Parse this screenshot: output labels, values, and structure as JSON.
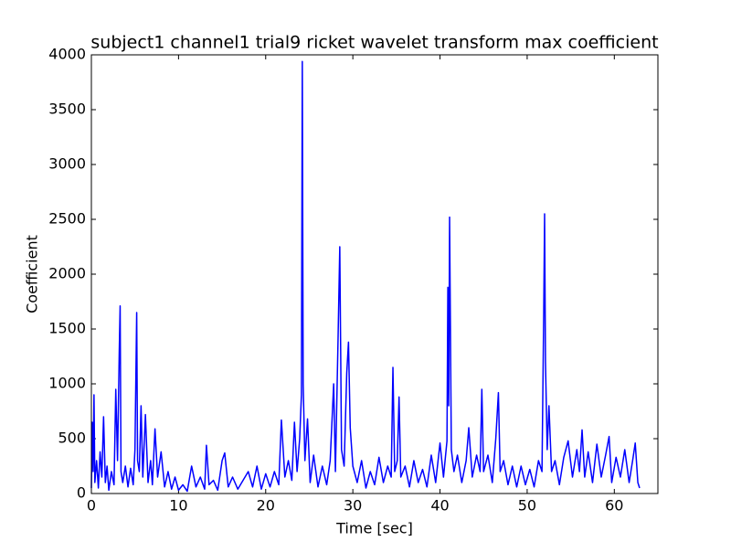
{
  "chart_data": {
    "type": "line",
    "title": "subject1 channel1 trial9 ricket wavelet transform max coefficient",
    "xlabel": "Time [sec]",
    "ylabel": "Coefficient",
    "color": "#0000ff",
    "xlim": [
      0,
      65
    ],
    "ylim": [
      0,
      4000
    ],
    "xticks": [
      0,
      10,
      20,
      30,
      40,
      50,
      60
    ],
    "yticks": [
      0,
      500,
      1000,
      1500,
      2000,
      2500,
      3000,
      3500,
      4000
    ],
    "grid": false,
    "x": [
      0,
      0.1,
      0.2,
      0.3,
      0.4,
      0.6,
      0.8,
      1.0,
      1.2,
      1.4,
      1.6,
      1.8,
      2.0,
      2.3,
      2.6,
      2.8,
      3.0,
      3.2,
      3.3,
      3.4,
      3.6,
      3.9,
      4.2,
      4.5,
      4.8,
      5.0,
      5.2,
      5.3,
      5.5,
      5.7,
      5.9,
      6.2,
      6.5,
      6.8,
      7.0,
      7.3,
      7.6,
      8.0,
      8.4,
      8.8,
      9.2,
      9.6,
      10.0,
      10.5,
      11.0,
      11.5,
      12.0,
      12.5,
      13.0,
      13.2,
      13.5,
      14.0,
      14.5,
      15.0,
      15.3,
      15.7,
      16.2,
      16.8,
      17.4,
      18.0,
      18.5,
      19.0,
      19.5,
      20.0,
      20.5,
      21.0,
      21.5,
      21.8,
      22.2,
      22.6,
      23.0,
      23.3,
      23.6,
      23.9,
      24.1,
      24.2,
      24.3,
      24.5,
      24.8,
      25.1,
      25.5,
      26.0,
      26.5,
      27.0,
      27.4,
      27.8,
      28.0,
      28.3,
      28.5,
      28.7,
      29.0,
      29.3,
      29.5,
      29.7,
      30.0,
      30.5,
      31.0,
      31.5,
      32.0,
      32.5,
      33.0,
      33.5,
      34.0,
      34.4,
      34.6,
      34.8,
      35.1,
      35.3,
      35.5,
      36.0,
      36.5,
      37.0,
      37.5,
      38.0,
      38.5,
      39.0,
      39.5,
      40.0,
      40.4,
      40.8,
      40.9,
      41.0,
      41.1,
      41.3,
      41.6,
      42.0,
      42.5,
      43.0,
      43.3,
      43.7,
      44.2,
      44.6,
      44.8,
      45.0,
      45.5,
      46.0,
      46.4,
      46.7,
      46.9,
      47.3,
      47.8,
      48.3,
      48.8,
      49.3,
      49.8,
      50.3,
      50.8,
      51.3,
      51.7,
      51.9,
      52.0,
      52.1,
      52.3,
      52.5,
      52.8,
      53.2,
      53.7,
      54.2,
      54.7,
      55.2,
      55.7,
      56.0,
      56.3,
      56.6,
      57.0,
      57.5,
      58.0,
      58.5,
      59.0,
      59.4,
      59.7,
      60.2,
      60.7,
      61.2,
      61.7,
      62.1,
      62.4,
      62.7,
      62.9
    ],
    "values": [
      50,
      650,
      200,
      900,
      100,
      300,
      50,
      380,
      150,
      700,
      100,
      250,
      30,
      200,
      80,
      950,
      300,
      1300,
      1710,
      200,
      100,
      250,
      60,
      230,
      80,
      400,
      1650,
      300,
      200,
      800,
      150,
      720,
      100,
      300,
      80,
      590,
      150,
      380,
      60,
      200,
      40,
      150,
      30,
      80,
      20,
      250,
      60,
      150,
      40,
      440,
      80,
      120,
      30,
      300,
      370,
      60,
      150,
      40,
      120,
      200,
      60,
      250,
      40,
      180,
      60,
      200,
      80,
      670,
      150,
      300,
      120,
      650,
      200,
      500,
      900,
      3940,
      1000,
      300,
      680,
      100,
      350,
      60,
      250,
      80,
      300,
      1000,
      200,
      1400,
      2250,
      400,
      250,
      1100,
      1380,
      600,
      250,
      100,
      300,
      50,
      200,
      80,
      330,
      100,
      250,
      150,
      1150,
      200,
      300,
      880,
      150,
      250,
      60,
      300,
      100,
      220,
      60,
      350,
      100,
      460,
      150,
      480,
      1880,
      800,
      2520,
      400,
      200,
      350,
      100,
      300,
      600,
      150,
      350,
      200,
      950,
      200,
      350,
      100,
      500,
      920,
      200,
      300,
      80,
      250,
      60,
      250,
      80,
      220,
      60,
      300,
      200,
      1650,
      2550,
      1200,
      400,
      800,
      200,
      300,
      80,
      330,
      480,
      150,
      400,
      200,
      580,
      150,
      380,
      100,
      450,
      150,
      350,
      520,
      100,
      330,
      150,
      400,
      100,
      300,
      460,
      100,
      50
    ]
  }
}
